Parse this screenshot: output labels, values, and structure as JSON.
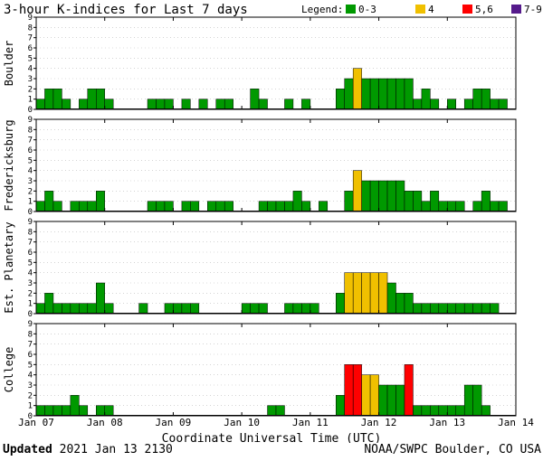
{
  "chart_data": {
    "type": "bar",
    "title": "3-hour K-indices for Last 7 days",
    "xlabel": "Coordinate Universal Time (UTC)",
    "x_tick_labels": [
      "Jan 07",
      "Jan 08",
      "Jan 09",
      "Jan 10",
      "Jan 11",
      "Jan 12",
      "Jan 13",
      "Jan 14"
    ],
    "y_ticks": [
      0,
      1,
      2,
      3,
      4,
      5,
      6,
      7,
      8,
      9
    ],
    "ylim": [
      0,
      9
    ],
    "intervals_per_day": 8,
    "legend": {
      "label": "Legend:",
      "entries": [
        {
          "label": "0-3",
          "color": "#009900"
        },
        {
          "label": "4",
          "color": "#f0c000"
        },
        {
          "label": "5,6",
          "color": "#ff0000"
        },
        {
          "label": "7-9",
          "color": "#551a8b"
        }
      ]
    },
    "panels": [
      {
        "name": "Boulder",
        "values": [
          1,
          2,
          2,
          1,
          0,
          1,
          2,
          2,
          1,
          0,
          0,
          0,
          0,
          1,
          1,
          1,
          0,
          1,
          0,
          1,
          0,
          1,
          1,
          0,
          0,
          2,
          1,
          0,
          0,
          1,
          0,
          1,
          0,
          0,
          0,
          2,
          3,
          4,
          3,
          3,
          3,
          3,
          3,
          3,
          1,
          2,
          1,
          0,
          1,
          0,
          1,
          2,
          2,
          1,
          1,
          0
        ]
      },
      {
        "name": "Fredericksburg",
        "values": [
          1,
          2,
          1,
          0,
          1,
          1,
          1,
          2,
          0,
          0,
          0,
          0,
          0,
          1,
          1,
          1,
          0,
          1,
          1,
          0,
          1,
          1,
          1,
          0,
          0,
          0,
          1,
          1,
          1,
          1,
          2,
          1,
          0,
          1,
          0,
          0,
          2,
          4,
          3,
          3,
          3,
          3,
          3,
          2,
          2,
          1,
          2,
          1,
          1,
          1,
          0,
          1,
          2,
          1,
          1,
          0
        ]
      },
      {
        "name": "Est. Planetary",
        "values": [
          1,
          2,
          1,
          1,
          1,
          1,
          1,
          3,
          1,
          0,
          0,
          0,
          1,
          0,
          0,
          1,
          1,
          1,
          1,
          0,
          0,
          0,
          0,
          0,
          1,
          1,
          1,
          0,
          0,
          1,
          1,
          1,
          1,
          0,
          0,
          2,
          4,
          4,
          4,
          4,
          4,
          3,
          2,
          2,
          1,
          1,
          1,
          1,
          1,
          1,
          1,
          1,
          1,
          1,
          0,
          0
        ]
      },
      {
        "name": "College",
        "values": [
          1,
          1,
          1,
          1,
          2,
          1,
          0,
          1,
          1,
          0,
          0,
          0,
          0,
          0,
          0,
          0,
          0,
          0,
          0,
          0,
          0,
          0,
          0,
          0,
          0,
          0,
          0,
          1,
          1,
          0,
          0,
          0,
          0,
          0,
          0,
          2,
          5,
          5,
          4,
          4,
          3,
          3,
          3,
          5,
          1,
          1,
          1,
          1,
          1,
          1,
          3,
          3,
          1,
          0,
          0,
          0
        ]
      }
    ]
  },
  "footer": {
    "updated_label": "Updated",
    "updated_value": "2021 Jan 13 2130",
    "credit": "NOAA/SWPC Boulder, CO USA"
  }
}
